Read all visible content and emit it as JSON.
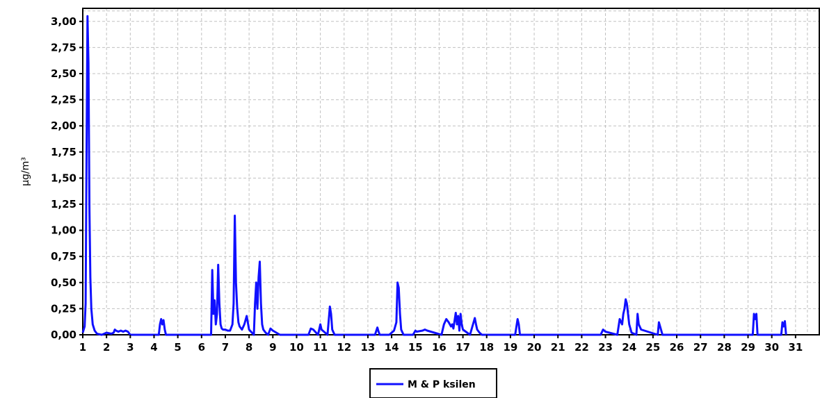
{
  "chart_data": {
    "type": "line",
    "title": "",
    "xlabel": "",
    "ylabel": "µg/m³",
    "xlim": [
      1,
      32
    ],
    "ylim": [
      0,
      3.125
    ],
    "x_ticks": [
      1,
      2,
      3,
      4,
      5,
      6,
      7,
      8,
      9,
      10,
      11,
      12,
      13,
      14,
      15,
      16,
      17,
      18,
      19,
      20,
      21,
      22,
      23,
      24,
      25,
      26,
      27,
      28,
      29,
      30,
      31
    ],
    "y_ticks": [
      "0,00",
      "0,25",
      "0,50",
      "0,75",
      "1,00",
      "1,25",
      "1,50",
      "1,75",
      "2,00",
      "2,25",
      "2,50",
      "2,75",
      "3,00"
    ],
    "grid": true,
    "legend": "bottom-center",
    "colors": {
      "series": "#1010ff",
      "grid": "#c0c0c0",
      "axis": "#000000"
    },
    "series": [
      {
        "name": "M & P ksilen",
        "color": "#1010ff",
        "x": [
          1.0,
          1.08,
          1.12,
          1.16,
          1.2,
          1.24,
          1.28,
          1.32,
          1.36,
          1.42,
          1.5,
          1.6,
          1.8,
          2.0,
          2.2,
          2.3,
          2.35,
          2.4,
          2.5,
          2.6,
          2.7,
          2.8,
          2.9,
          3.0,
          3.2,
          3.8,
          4.2,
          4.25,
          4.3,
          4.35,
          4.4,
          4.45,
          4.5,
          4.6,
          5.0,
          6.0,
          6.4,
          6.45,
          6.5,
          6.55,
          6.6,
          6.65,
          6.7,
          6.75,
          6.8,
          6.85,
          6.9,
          7.0,
          7.1,
          7.2,
          7.3,
          7.35,
          7.4,
          7.45,
          7.5,
          7.55,
          7.6,
          7.7,
          7.8,
          7.9,
          8.0,
          8.2,
          8.25,
          8.3,
          8.35,
          8.4,
          8.45,
          8.5,
          8.55,
          8.6,
          8.7,
          8.8,
          8.9,
          9.0,
          9.3,
          10.5,
          10.6,
          10.7,
          10.9,
          11.0,
          11.05,
          11.3,
          11.4,
          11.45,
          11.5,
          11.6,
          13.3,
          13.4,
          13.45,
          13.5,
          13.9,
          14.1,
          14.2,
          14.25,
          14.3,
          14.35,
          14.4,
          14.5,
          14.9,
          15.0,
          15.05,
          15.3,
          15.4,
          15.5,
          16.1,
          16.2,
          16.3,
          16.4,
          16.5,
          16.55,
          16.6,
          16.7,
          16.75,
          16.8,
          16.85,
          16.9,
          16.95,
          17.0,
          17.3,
          17.4,
          17.5,
          17.55,
          17.6,
          17.7,
          17.8,
          19.2,
          19.3,
          19.35,
          19.4,
          22.8,
          22.9,
          23.0,
          23.5,
          23.6,
          23.7,
          23.75,
          23.8,
          23.85,
          23.9,
          24.0,
          24.1,
          24.3,
          24.35,
          24.4,
          24.5,
          25.2,
          25.25,
          25.3,
          25.4,
          29.2,
          29.25,
          29.3,
          29.35,
          29.4,
          30.4,
          30.45,
          30.5,
          30.55,
          30.6
        ],
        "values": [
          0.02,
          0.08,
          0.3,
          1.8,
          3.05,
          2.6,
          1.2,
          0.55,
          0.25,
          0.1,
          0.04,
          0.01,
          0.0,
          0.02,
          0.01,
          0.02,
          0.05,
          0.04,
          0.03,
          0.04,
          0.03,
          0.04,
          0.03,
          0.0,
          0.0,
          0.0,
          0.0,
          0.1,
          0.15,
          0.1,
          0.14,
          0.05,
          0.0,
          0.0,
          0.0,
          0.0,
          0.0,
          0.62,
          0.2,
          0.33,
          0.1,
          0.2,
          0.67,
          0.3,
          0.1,
          0.06,
          0.05,
          0.05,
          0.04,
          0.04,
          0.1,
          0.3,
          1.14,
          0.5,
          0.26,
          0.12,
          0.08,
          0.05,
          0.1,
          0.18,
          0.05,
          0.0,
          0.3,
          0.5,
          0.25,
          0.55,
          0.7,
          0.3,
          0.1,
          0.05,
          0.02,
          0.0,
          0.06,
          0.04,
          0.0,
          0.0,
          0.06,
          0.05,
          0.0,
          0.1,
          0.05,
          0.0,
          0.27,
          0.2,
          0.05,
          0.0,
          0.0,
          0.07,
          0.03,
          0.0,
          0.0,
          0.04,
          0.12,
          0.5,
          0.45,
          0.2,
          0.05,
          0.0,
          0.0,
          0.04,
          0.03,
          0.04,
          0.05,
          0.04,
          0.0,
          0.1,
          0.15,
          0.12,
          0.08,
          0.1,
          0.06,
          0.21,
          0.1,
          0.18,
          0.04,
          0.2,
          0.1,
          0.05,
          0.0,
          0.08,
          0.16,
          0.1,
          0.05,
          0.02,
          0.0,
          0.0,
          0.15,
          0.1,
          0.0,
          0.0,
          0.05,
          0.03,
          0.0,
          0.15,
          0.1,
          0.2,
          0.25,
          0.34,
          0.3,
          0.1,
          0.02,
          0.0,
          0.2,
          0.1,
          0.05,
          0.0,
          0.12,
          0.08,
          0.0,
          0.0,
          0.2,
          0.15,
          0.2,
          0.0,
          0.0,
          0.12,
          0.08,
          0.13,
          0.0
        ]
      }
    ]
  }
}
